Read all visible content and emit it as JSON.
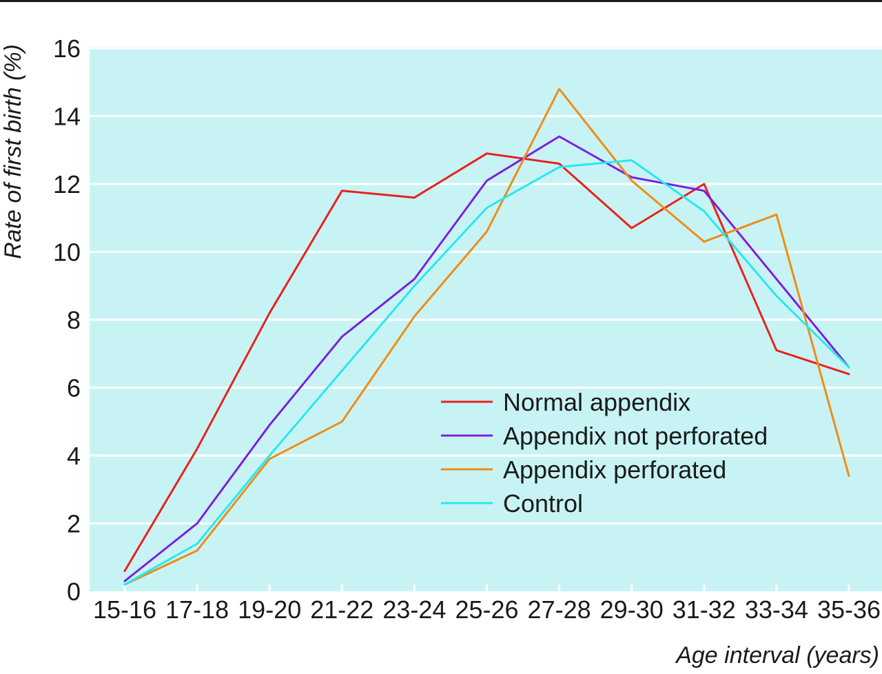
{
  "chart_data": {
    "type": "line",
    "xlabel": "Age interval (years)",
    "ylabel": "Rate of first birth (%)",
    "ylim": [
      0,
      16
    ],
    "yticks": [
      0,
      2,
      4,
      6,
      8,
      10,
      12,
      14,
      16
    ],
    "grid": true,
    "legend_position": "lower-right",
    "categories": [
      "15-16",
      "17-18",
      "19-20",
      "21-22",
      "23-24",
      "25-26",
      "27-28",
      "29-30",
      "31-32",
      "33-34",
      "35-36"
    ],
    "series": [
      {
        "name": "Normal appendix",
        "color": "#e8221b",
        "values": [
          0.6,
          4.2,
          8.2,
          11.8,
          11.6,
          12.9,
          12.6,
          10.7,
          12.0,
          7.1,
          6.4
        ]
      },
      {
        "name": "Appendix not perforated",
        "color": "#7a1fe0",
        "values": [
          0.3,
          2.0,
          4.9,
          7.5,
          9.2,
          12.1,
          13.4,
          12.2,
          11.8,
          9.2,
          6.6
        ]
      },
      {
        "name": "Appendix perforated",
        "color": "#f08c14",
        "values": [
          0.2,
          1.2,
          3.9,
          5.0,
          8.1,
          10.6,
          14.8,
          12.1,
          10.3,
          11.1,
          3.4
        ]
      },
      {
        "name": "Control",
        "color": "#27e8f0",
        "values": [
          0.2,
          1.4,
          4.0,
          6.5,
          9.0,
          11.3,
          12.5,
          12.7,
          11.2,
          8.7,
          6.6
        ]
      }
    ]
  }
}
